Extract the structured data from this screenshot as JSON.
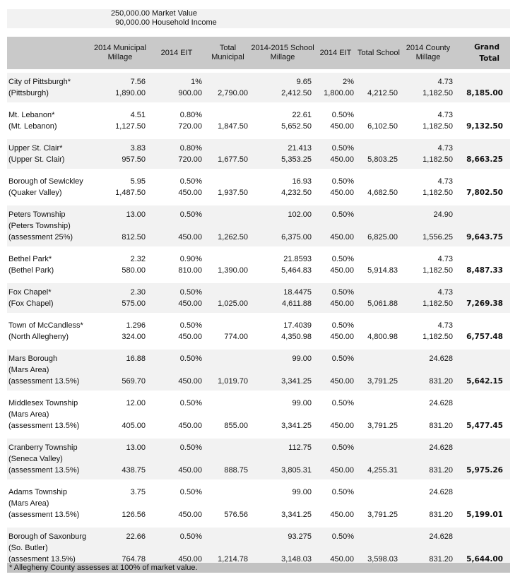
{
  "info": [
    {
      "value": "250,000.00",
      "label": "Market Value"
    },
    {
      "value": "90,000.00",
      "label": "Household Income"
    }
  ],
  "headers": [
    "2014 Municipal Millage",
    "2014 EIT",
    "Total Municipal",
    "2014-2015 School Millage",
    "2014 EIT",
    "Total School",
    "2014 County Millage",
    "Grand Total"
  ],
  "rows": [
    {
      "names": [
        "City of Pittsburgh*",
        "(Pittsburgh)"
      ],
      "rates": [
        "7.56",
        "1%",
        "",
        "9.65",
        "2%",
        "",
        "4.73",
        ""
      ],
      "amounts": [
        "1,890.00",
        "900.00",
        "2,790.00",
        "2,412.50",
        "1,800.00",
        "4,212.50",
        "1,182.50",
        "8,185.00"
      ]
    },
    {
      "names": [
        "Mt. Lebanon*",
        "(Mt. Lebanon)"
      ],
      "rates": [
        "4.51",
        "0.80%",
        "",
        "22.61",
        "0.50%",
        "",
        "4.73",
        ""
      ],
      "amounts": [
        "1,127.50",
        "720.00",
        "1,847.50",
        "5,652.50",
        "450.00",
        "6,102.50",
        "1,182.50",
        "9,132.50"
      ]
    },
    {
      "names": [
        "Upper St. Clair*",
        "(Upper St. Clair)"
      ],
      "rates": [
        "3.83",
        "0.80%",
        "",
        "21.413",
        "0.50%",
        "",
        "4.73",
        ""
      ],
      "amounts": [
        "957.50",
        "720.00",
        "1,677.50",
        "5,353.25",
        "450.00",
        "5,803.25",
        "1,182.50",
        "8,663.25"
      ]
    },
    {
      "names": [
        "Borough of Sewickley",
        "(Quaker Valley)"
      ],
      "rates": [
        "5.95",
        "0.50%",
        "",
        "16.93",
        "0.50%",
        "",
        "4.73",
        ""
      ],
      "amounts": [
        "1,487.50",
        "450.00",
        "1,937.50",
        "4,232.50",
        "450.00",
        "4,682.50",
        "1,182.50",
        "7,802.50"
      ]
    },
    {
      "names": [
        "Peters Township",
        "(Peters Township)",
        "(assessment 25%)"
      ],
      "rates": [
        "13.00",
        "0.50%",
        "",
        "102.00",
        "0.50%",
        "",
        "24.90",
        ""
      ],
      "amounts": [
        "812.50",
        "450.00",
        "1,262.50",
        "6,375.00",
        "450.00",
        "6,825.00",
        "1,556.25",
        "9,643.75"
      ]
    },
    {
      "names": [
        "Bethel Park*",
        "(Bethel Park)"
      ],
      "rates": [
        "2.32",
        "0.90%",
        "",
        "21.8593",
        "0.50%",
        "",
        "4.73",
        ""
      ],
      "amounts": [
        "580.00",
        "810.00",
        "1,390.00",
        "5,464.83",
        "450.00",
        "5,914.83",
        "1,182.50",
        "8,487.33"
      ]
    },
    {
      "names": [
        "Fox Chapel*",
        "(Fox Chapel)"
      ],
      "rates": [
        "2.30",
        "0.50%",
        "",
        "18.4475",
        "0.50%",
        "",
        "4.73",
        ""
      ],
      "amounts": [
        "575.00",
        "450.00",
        "1,025.00",
        "4,611.88",
        "450.00",
        "5,061.88",
        "1,182.50",
        "7,269.38"
      ]
    },
    {
      "names": [
        "Town of McCandless*",
        "(North Allegheny)"
      ],
      "rates": [
        "1.296",
        "0.50%",
        "",
        "17.4039",
        "0.50%",
        "",
        "4.73",
        ""
      ],
      "amounts": [
        "324.00",
        "450.00",
        "774.00",
        "4,350.98",
        "450.00",
        "4,800.98",
        "1,182.50",
        "6,757.48"
      ]
    },
    {
      "names": [
        "Mars Borough",
        "(Mars Area)",
        "(assessment 13.5%)"
      ],
      "rates": [
        "16.88",
        "0.50%",
        "",
        "99.00",
        "0.50%",
        "",
        "24.628",
        ""
      ],
      "amounts": [
        "569.70",
        "450.00",
        "1,019.70",
        "3,341.25",
        "450.00",
        "3,791.25",
        "831.20",
        "5,642.15"
      ]
    },
    {
      "names": [
        "Middlesex Township",
        "(Mars Area)",
        "(assessment 13.5%)"
      ],
      "rates": [
        "12.00",
        "0.50%",
        "",
        "99.00",
        "0.50%",
        "",
        "24.628",
        ""
      ],
      "amounts": [
        "405.00",
        "450.00",
        "855.00",
        "3,341.25",
        "450.00",
        "3,791.25",
        "831.20",
        "5,477.45"
      ]
    },
    {
      "names": [
        "Cranberry Township",
        "(Seneca Valley)",
        "(assessment 13.5%)"
      ],
      "rates": [
        "13.00",
        "0.50%",
        "",
        "112.75",
        "0.50%",
        "",
        "24.628",
        ""
      ],
      "amounts": [
        "438.75",
        "450.00",
        "888.75",
        "3,805.31",
        "450.00",
        "4,255.31",
        "831.20",
        "5,975.26"
      ]
    },
    {
      "names": [
        "Adams Township",
        "(Mars Area)",
        "(assessment 13.5%)"
      ],
      "rates": [
        "3.75",
        "0.50%",
        "",
        "99.00",
        "0.50%",
        "",
        "24.628",
        ""
      ],
      "amounts": [
        "126.56",
        "450.00",
        "576.56",
        "3,341.25",
        "450.00",
        "3,791.25",
        "831.20",
        "5,199.01"
      ]
    },
    {
      "names": [
        "Borough of Saxonburg",
        "(So. Butler)",
        "(assesment 13.5%)"
      ],
      "rates": [
        "22.66",
        "0.50%",
        "",
        "93.275",
        "0.50%",
        "",
        "24.628",
        ""
      ],
      "amounts": [
        "764.78",
        "450.00",
        "1,214.78",
        "3,148.03",
        "450.00",
        "3,598.03",
        "831.20",
        "5,644.00"
      ]
    }
  ],
  "footnote": "*  Allegheny County assesses at 100% of market value."
}
